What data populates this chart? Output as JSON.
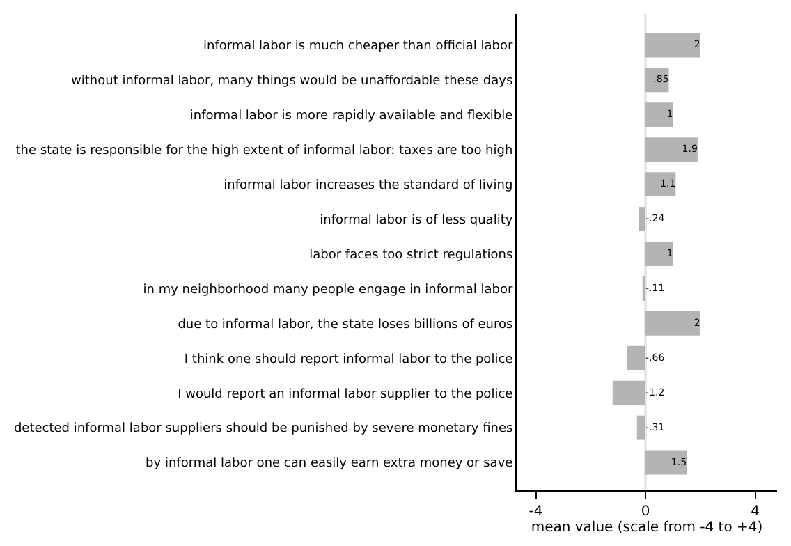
{
  "chart_data": {
    "type": "bar",
    "orientation": "horizontal",
    "xlabel": "mean value (scale from -4 to +4)",
    "categories": [
      "informal labor is much cheaper than official labor",
      "without informal labor, many things would be unaffordable these days",
      "informal labor is more rapidly available and flexible",
      "the state is responsible for the high extent of informal labor: taxes are too high",
      "informal labor increases the standard of living",
      "informal labor is of less quality",
      "labor faces too strict regulations",
      "in my neighborhood many people engage in informal labor",
      "due to informal labor, the state loses billions of euros",
      "I think one should report informal labor to the police",
      "I would report an informal labor supplier to the police",
      "detected informal labor suppliers should be punished by severe monetary fines",
      "by informal labor one can easily earn extra money or save"
    ],
    "values": [
      2,
      0.85,
      1,
      1.9,
      1.1,
      -0.24,
      1,
      -0.11,
      2,
      -0.66,
      -1.2,
      -0.31,
      1.5
    ],
    "value_labels": [
      "2",
      ".85",
      "1",
      "1.9",
      "1.1",
      "-.24",
      "1",
      "-.11",
      "2",
      "-.66",
      "-1.2",
      "-.31",
      "1.5"
    ],
    "color": "#b4b4b4",
    "ref_lines": [
      {
        "axis": "x",
        "value": 0,
        "color": "#e8e8e8"
      }
    ],
    "xlim": [
      -4.7,
      4.8
    ],
    "xticks": [
      -4,
      0,
      4
    ],
    "grid": false,
    "legend": false
  }
}
